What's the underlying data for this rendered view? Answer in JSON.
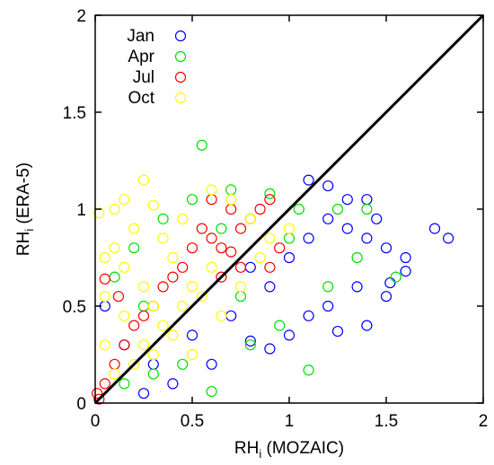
{
  "chart_data": {
    "type": "scatter",
    "title": "",
    "xlabel": {
      "base": "RH",
      "sub": "i",
      "rest": " (MOZAIC)"
    },
    "ylabel": {
      "base": "RH",
      "sub": "i",
      "rest": " (ERA-5)"
    },
    "xlim": [
      0,
      2
    ],
    "ylim": [
      0,
      2
    ],
    "xticks": [
      "0",
      "0.5",
      "1",
      "1.5",
      "2"
    ],
    "yticks": [
      "0",
      "0.5",
      "1",
      "1.5",
      "2"
    ],
    "grid": false,
    "legend_position": "top-left",
    "marker": "open-circle",
    "reference_line": {
      "from": [
        0,
        0
      ],
      "to": [
        2,
        2
      ],
      "color": "#000000"
    },
    "series": [
      {
        "name": "Jan",
        "color": "#0000ff",
        "points": [
          [
            0.3,
            0.2
          ],
          [
            0.5,
            0.35
          ],
          [
            0.7,
            0.45
          ],
          [
            0.9,
            0.6
          ],
          [
            1.0,
            0.75
          ],
          [
            1.1,
            0.85
          ],
          [
            1.2,
            0.95
          ],
          [
            1.3,
            0.9
          ],
          [
            1.4,
            0.85
          ],
          [
            1.5,
            0.8
          ],
          [
            1.6,
            0.75
          ],
          [
            1.75,
            0.9
          ],
          [
            1.82,
            0.85
          ],
          [
            1.5,
            0.55
          ],
          [
            1.35,
            0.6
          ],
          [
            1.2,
            0.5
          ],
          [
            1.1,
            0.45
          ],
          [
            1.0,
            0.35
          ],
          [
            0.9,
            0.28
          ],
          [
            0.8,
            0.32
          ],
          [
            0.6,
            0.2
          ],
          [
            0.4,
            0.1
          ],
          [
            0.25,
            0.05
          ],
          [
            1.4,
            0.4
          ],
          [
            1.25,
            0.37
          ],
          [
            1.52,
            0.62
          ],
          [
            1.3,
            1.05
          ],
          [
            1.2,
            1.12
          ],
          [
            1.1,
            1.15
          ],
          [
            1.4,
            1.05
          ],
          [
            0.15,
            0.3
          ],
          [
            0.05,
            0.5
          ],
          [
            0.8,
            0.7
          ],
          [
            1.6,
            0.68
          ],
          [
            1.45,
            0.95
          ]
        ]
      },
      {
        "name": "Apr",
        "color": "#00e000",
        "points": [
          [
            0.55,
            1.33
          ],
          [
            0.1,
            0.65
          ],
          [
            0.2,
            0.8
          ],
          [
            0.35,
            0.95
          ],
          [
            0.5,
            1.05
          ],
          [
            0.7,
            1.1
          ],
          [
            0.9,
            1.08
          ],
          [
            1.05,
            1.0
          ],
          [
            1.25,
            1.0
          ],
          [
            1.4,
            1.0
          ],
          [
            1.55,
            0.65
          ],
          [
            1.1,
            0.17
          ],
          [
            0.6,
            0.06
          ],
          [
            0.8,
            0.3
          ],
          [
            1.2,
            0.6
          ],
          [
            0.3,
            0.15
          ],
          [
            0.45,
            0.2
          ],
          [
            0.15,
            0.1
          ],
          [
            1.35,
            0.75
          ],
          [
            0.75,
            0.55
          ],
          [
            0.95,
            0.4
          ],
          [
            0.25,
            0.5
          ],
          [
            0.65,
            0.9
          ],
          [
            1.0,
            0.85
          ]
        ]
      },
      {
        "name": "Jul",
        "color": "#ff0000",
        "points": [
          [
            0.6,
            0.85
          ],
          [
            0.65,
            0.8
          ],
          [
            0.7,
            0.78
          ],
          [
            0.75,
            0.9
          ],
          [
            0.8,
            0.95
          ],
          [
            0.55,
            0.9
          ],
          [
            0.5,
            0.8
          ],
          [
            0.45,
            0.7
          ],
          [
            0.4,
            0.65
          ],
          [
            0.35,
            0.6
          ],
          [
            0.85,
            1.0
          ],
          [
            0.9,
            1.05
          ],
          [
            0.7,
            1.0
          ],
          [
            0.6,
            1.05
          ],
          [
            0.3,
            0.5
          ],
          [
            0.25,
            0.45
          ],
          [
            0.2,
            0.4
          ],
          [
            0.15,
            0.3
          ],
          [
            0.1,
            0.2
          ],
          [
            0.05,
            0.1
          ],
          [
            0.02,
            0.02
          ],
          [
            0.01,
            0.05
          ],
          [
            0.75,
            0.7
          ],
          [
            0.65,
            0.65
          ],
          [
            0.95,
            0.8
          ],
          [
            0.05,
            0.64
          ],
          [
            0.12,
            0.55
          ],
          [
            0.9,
            0.7
          ]
        ]
      },
      {
        "name": "Oct",
        "color": "#ffff00",
        "points": [
          [
            0.02,
            0.98
          ],
          [
            0.1,
            1.0
          ],
          [
            0.15,
            1.05
          ],
          [
            0.25,
            1.15
          ],
          [
            0.3,
            1.02
          ],
          [
            0.2,
            0.9
          ],
          [
            0.1,
            0.8
          ],
          [
            0.05,
            0.75
          ],
          [
            0.15,
            0.7
          ],
          [
            0.25,
            0.6
          ],
          [
            0.3,
            0.5
          ],
          [
            0.35,
            0.4
          ],
          [
            0.4,
            0.35
          ],
          [
            0.45,
            0.5
          ],
          [
            0.5,
            0.6
          ],
          [
            0.6,
            0.7
          ],
          [
            0.55,
            0.55
          ],
          [
            0.4,
            0.75
          ],
          [
            0.35,
            0.85
          ],
          [
            0.45,
            0.95
          ],
          [
            0.6,
            1.1
          ],
          [
            0.7,
            1.05
          ],
          [
            0.8,
            0.95
          ],
          [
            0.9,
            0.85
          ],
          [
            1.0,
            0.9
          ],
          [
            0.2,
            0.2
          ],
          [
            0.1,
            0.15
          ],
          [
            0.05,
            0.3
          ],
          [
            0.3,
            0.25
          ],
          [
            0.25,
            0.3
          ],
          [
            0.15,
            0.45
          ],
          [
            0.05,
            0.55
          ],
          [
            0.65,
            0.45
          ],
          [
            0.75,
            0.6
          ],
          [
            0.85,
            0.75
          ],
          [
            0.5,
            0.25
          ]
        ]
      }
    ]
  }
}
